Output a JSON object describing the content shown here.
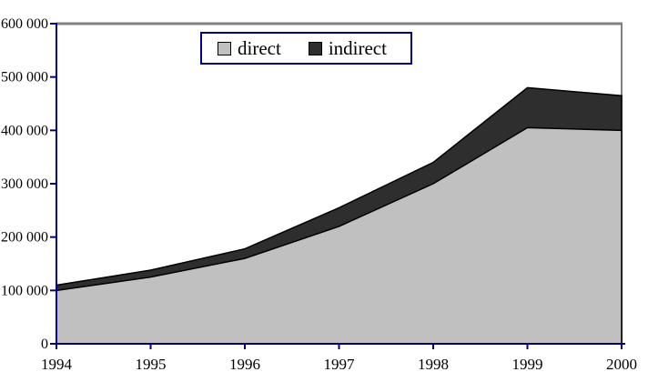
{
  "figure": {
    "background": "#FFFFFF",
    "plot_border_color": "#808080",
    "axis_color": "#000080",
    "outline_color": "#000000"
  },
  "legend": {
    "items": [
      {
        "label": "direct",
        "color": "#C0C0C0"
      },
      {
        "label": "indirect",
        "color": "#2E2E2E"
      }
    ]
  },
  "chart_data": {
    "type": "area",
    "stacked": true,
    "title": "",
    "xlabel": "",
    "ylabel": "",
    "categories": [
      1994,
      1995,
      1996,
      1997,
      1998,
      1999,
      2000
    ],
    "series": [
      {
        "name": "direct",
        "color": "#C0C0C0",
        "values": [
          100000,
          125000,
          160000,
          220000,
          300000,
          405000,
          400000
        ]
      },
      {
        "name": "indirect",
        "color": "#2E2E2E",
        "values": [
          10000,
          13000,
          18000,
          35000,
          40000,
          75000,
          65000
        ]
      }
    ],
    "stacked_totals": [
      110000,
      138000,
      178000,
      255000,
      340000,
      480000,
      465000
    ],
    "ylim": [
      0,
      600000
    ],
    "ytick_interval": 100000,
    "ytick_labels": [
      "0",
      "100 000",
      "200 000",
      "300 000",
      "400 000",
      "500 000",
      "600 000"
    ],
    "xtick_labels": [
      "1994",
      "1995",
      "1996",
      "1997",
      "1998",
      "1999",
      "2000"
    ],
    "grid": false,
    "legend_position": "top-center"
  }
}
